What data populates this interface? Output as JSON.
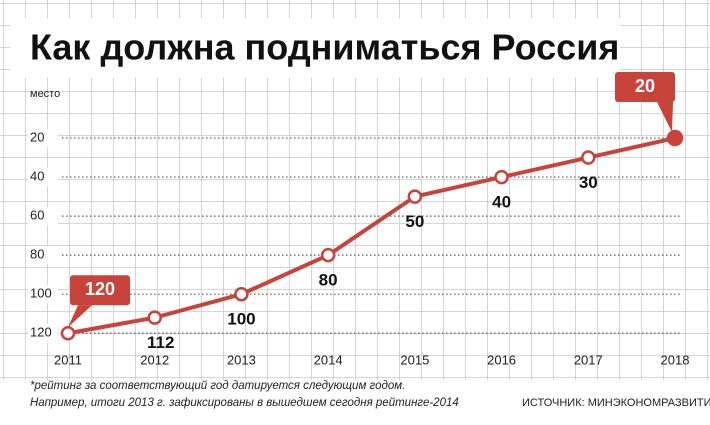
{
  "title": "Как должна подниматься Россия",
  "chart_data": {
    "type": "line",
    "y_label": "место",
    "categories": [
      "2011",
      "2012",
      "2013",
      "2014",
      "2015",
      "2016",
      "2017",
      "2018"
    ],
    "series": [
      {
        "name": "место",
        "color": "#c8433a",
        "values": [
          120,
          112,
          100,
          80,
          50,
          40,
          30,
          20
        ]
      }
    ],
    "ylim": [
      125,
      0
    ],
    "yticks": [
      20,
      40,
      60,
      80,
      100,
      120
    ],
    "grid": true
  },
  "footnote": [
    "*рейтинг за соответствующий год датируется следующим годом.",
    "Например, итоги 2013 г. зафиксированы в вышедшем сегодня рейтинге-2014"
  ],
  "source": "ИСТОЧНИК: МИНЭКОНОМРАЗВИТИЯ"
}
